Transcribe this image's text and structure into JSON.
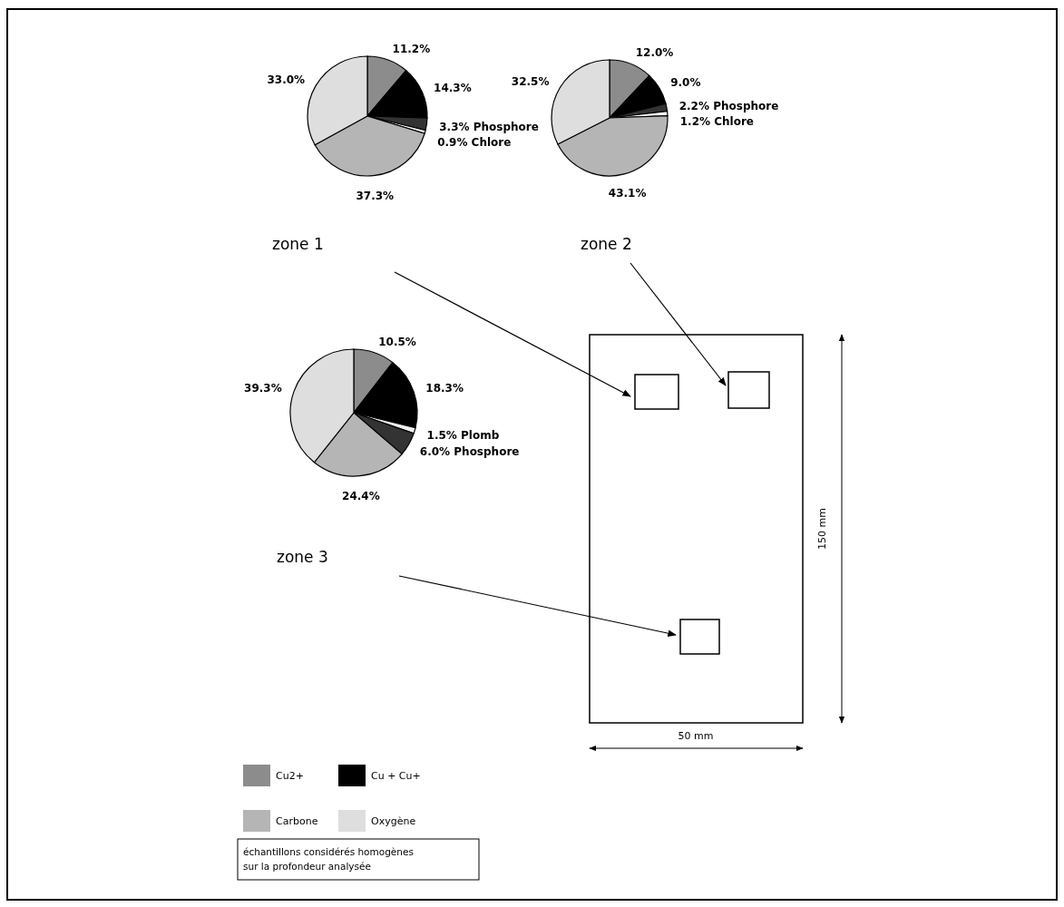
{
  "chart_data": [
    {
      "type": "pie",
      "title": "zone 1",
      "categories": [
        "Cu2+",
        "Cu + Cu+",
        null,
        null,
        "Carbone",
        "Oxygène"
      ],
      "values": [
        11.2,
        14.3,
        3.3,
        0.9,
        37.3,
        33.0
      ],
      "colors": [
        "#8c8c8c",
        "#000000",
        "#333333",
        "#ffffff",
        "#b5b5b5",
        "#dedede"
      ],
      "value_labels": [
        "11.2%",
        "14.3%",
        "3.3% Phosphore",
        "0.9% Chlore",
        "37.3%",
        "33.0%"
      ],
      "legend": "bottom left"
    },
    {
      "type": "pie",
      "title": "zone 2",
      "categories": [
        null,
        null,
        null,
        null,
        null,
        null
      ],
      "values": [
        12.0,
        9.0,
        2.2,
        1.2,
        43.1,
        32.5
      ],
      "colors": [
        "#8c8c8c",
        "#000000",
        "#333333",
        "#ffffff",
        "#b5b5b5",
        "#dedede"
      ],
      "value_labels": [
        "12.0%",
        "9.0%",
        "2.2% Phosphore",
        "1.2% Chlore",
        "43.1%",
        "32.5%"
      ]
    },
    {
      "type": "pie",
      "title": "zone 3",
      "categories": [
        null,
        null,
        null,
        null,
        null,
        null
      ],
      "values": [
        10.5,
        18.3,
        1.5,
        6.0,
        24.4,
        39.3
      ],
      "colors": [
        "#8c8c8c",
        "#000000",
        "#f0f0f0",
        "#333333",
        "#b5b5b5",
        "#dedede"
      ],
      "value_labels": [
        "10.5%",
        "18.3%",
        "1.5% Plomb",
        "6.0% Phosphore",
        "24.4%",
        "39.3%"
      ]
    },
    {
      "type": "other",
      "annotations": [
        "150 mm",
        "50 mm",
        "échantillons considérés homogènes sur la profondeur analysée"
      ]
    }
  ]
}
